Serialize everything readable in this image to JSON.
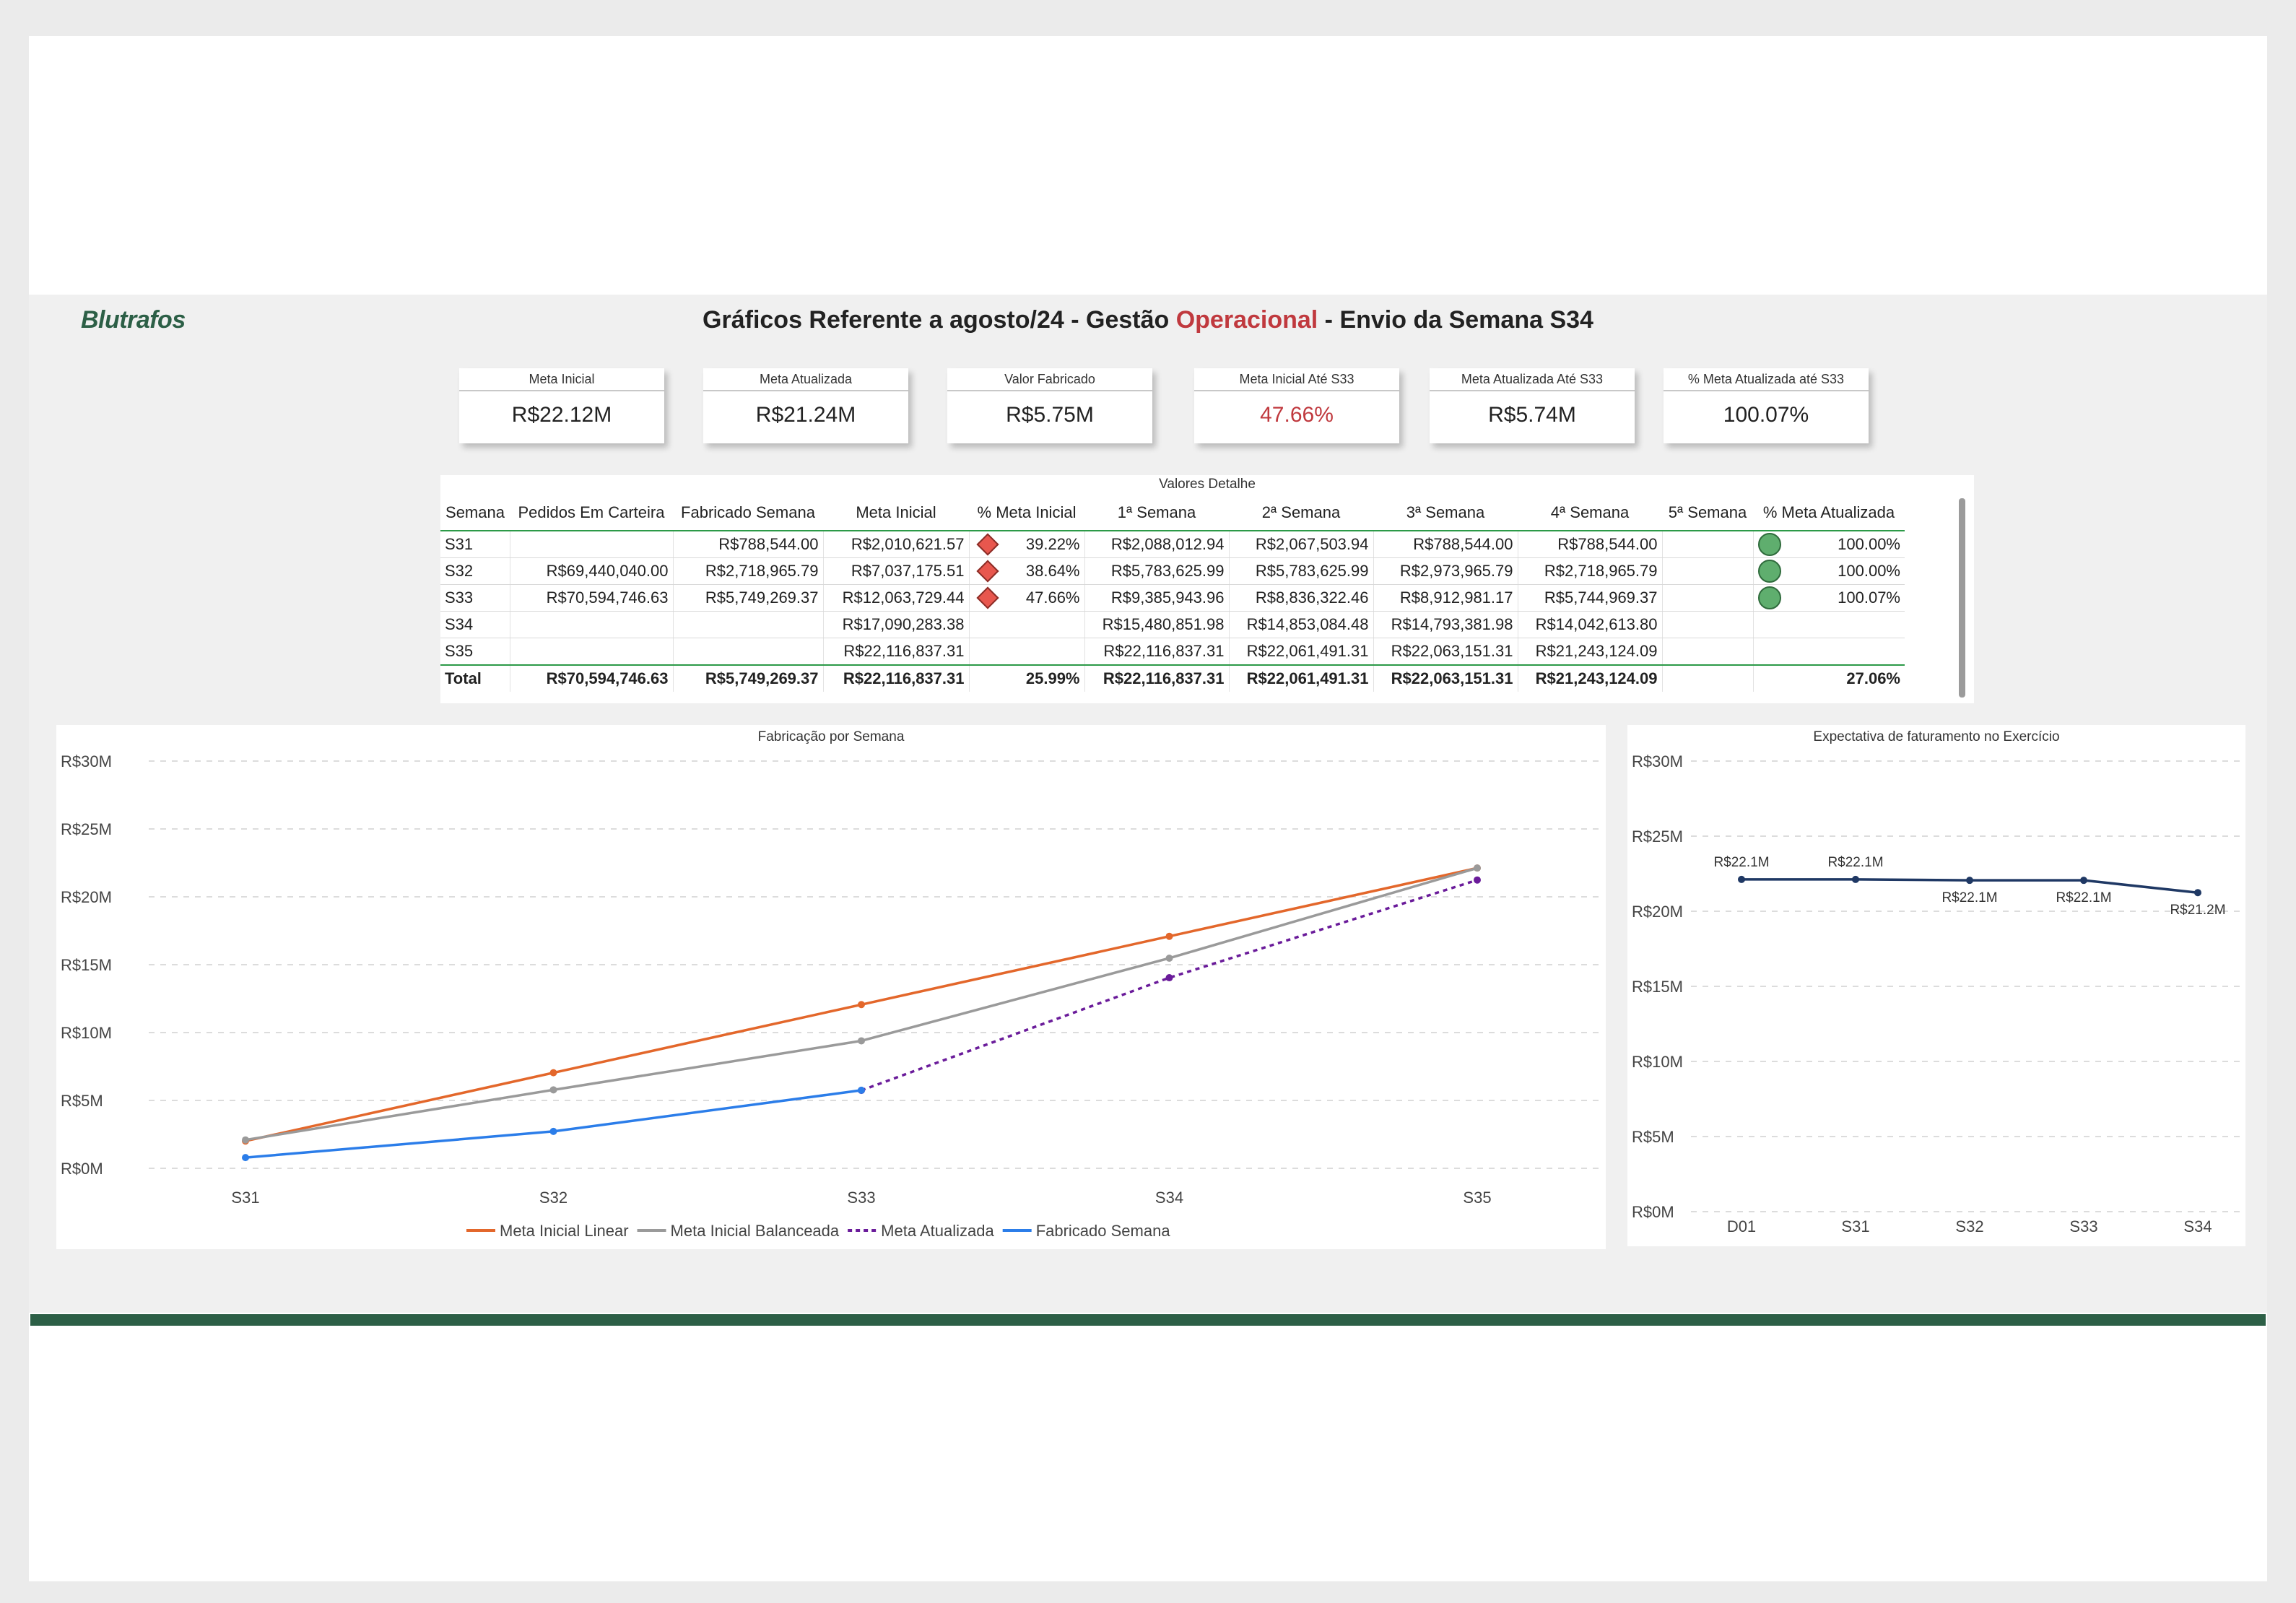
{
  "header": {
    "logo": "Blutrafos",
    "title_part1": "Gráficos Referente a agosto/24 - Gestão ",
    "title_accent": "Operacional",
    "title_part2": " - Envio da Semana S34",
    "accent_color": "#c0393e"
  },
  "cards": [
    {
      "label": "Meta Inicial",
      "value": "R$22.12M"
    },
    {
      "label": "Meta Atualizada",
      "value": "R$21.24M"
    },
    {
      "label": "Valor Fabricado",
      "value": "R$5.75M"
    },
    {
      "label": "Meta Inicial Até S33",
      "value": "47.66%"
    },
    {
      "label": "Meta Atualizada Até S33",
      "value": "R$5.74M"
    },
    {
      "label": "% Meta Atualizada até S33",
      "value": "100.07%"
    }
  ],
  "table": {
    "title": "Valores Detalhe",
    "columns": [
      "Semana",
      "Pedidos Em Carteira",
      "Fabricado Semana",
      "Meta Inicial",
      "% Meta Inicial",
      "1ª Semana",
      "2ª Semana",
      "3ª Semana",
      "4ª Semana",
      "5ª Semana",
      "% Meta Atualizada"
    ],
    "rows": [
      [
        "S31",
        "",
        "R$788,544.00",
        "R$2,010,621.57",
        "39.22%",
        "R$2,088,012.94",
        "R$2,067,503.94",
        "R$788,544.00",
        "R$788,544.00",
        "",
        "100.00%"
      ],
      [
        "S32",
        "R$69,440,040.00",
        "R$2,718,965.79",
        "R$7,037,175.51",
        "38.64%",
        "R$5,783,625.99",
        "R$5,783,625.99",
        "R$2,973,965.79",
        "R$2,718,965.79",
        "",
        "100.00%"
      ],
      [
        "S33",
        "R$70,594,746.63",
        "R$5,749,269.37",
        "R$12,063,729.44",
        "47.66%",
        "R$9,385,943.96",
        "R$8,836,322.46",
        "R$8,912,981.17",
        "R$5,744,969.37",
        "",
        "100.07%"
      ],
      [
        "S34",
        "",
        "",
        "R$17,090,283.38",
        "",
        "R$15,480,851.98",
        "R$14,853,084.48",
        "R$14,793,381.98",
        "R$14,042,613.80",
        "",
        ""
      ],
      [
        "S35",
        "",
        "",
        "R$22,116,837.31",
        "",
        "R$22,116,837.31",
        "R$22,061,491.31",
        "R$22,063,151.31",
        "R$21,243,124.09",
        "",
        ""
      ]
    ],
    "total": [
      "Total",
      "R$70,594,746.63",
      "R$5,749,269.37",
      "R$22,116,837.31",
      "25.99%",
      "R$22,116,837.31",
      "R$22,061,491.31",
      "R$22,063,151.31",
      "R$21,243,124.09",
      "",
      "27.06%"
    ]
  },
  "chart_data": [
    {
      "type": "line",
      "title": "Fabricação por Semana",
      "categories": [
        "S31",
        "S32",
        "S33",
        "S34",
        "S35"
      ],
      "ylim": [
        0,
        30
      ],
      "yticks": [
        0,
        5,
        10,
        15,
        20,
        25,
        30
      ],
      "ytick_labels": [
        "R$0M",
        "R$5M",
        "R$10M",
        "R$15M",
        "R$20M",
        "R$25M",
        "R$30M"
      ],
      "grid": true,
      "legend_position": "bottom-center",
      "series": [
        {
          "name": "Meta Inicial Linear",
          "color": "#e3672b",
          "dashed": false,
          "values": [
            2.01,
            7.04,
            12.06,
            17.09,
            22.12
          ]
        },
        {
          "name": "Meta Inicial Balanceada",
          "color": "#9a9a9a",
          "dashed": false,
          "values": [
            2.09,
            5.78,
            9.39,
            15.48,
            22.12
          ]
        },
        {
          "name": "Meta Atualizada",
          "color": "#6a1b9a",
          "dashed": true,
          "values": [
            null,
            null,
            5.74,
            14.04,
            21.24
          ]
        },
        {
          "name": "Fabricado Semana",
          "color": "#2b7de9",
          "dashed": false,
          "values": [
            0.79,
            2.72,
            5.75,
            null,
            null
          ]
        }
      ]
    },
    {
      "type": "line",
      "title": "Expectativa de faturamento no Exercício",
      "categories": [
        "D01",
        "S31",
        "S32",
        "S33",
        "S34"
      ],
      "ylim": [
        0,
        30
      ],
      "yticks": [
        0,
        5,
        10,
        15,
        20,
        25,
        30
      ],
      "ytick_labels": [
        "R$0M",
        "R$5M",
        "R$10M",
        "R$15M",
        "R$20M",
        "R$25M",
        "R$30M"
      ],
      "grid": true,
      "series": [
        {
          "color": "#1f3864",
          "values": [
            22.12,
            22.12,
            22.06,
            22.06,
            21.24
          ],
          "data_labels": [
            "R$22.1M",
            "R$22.1M",
            "R$22.1M",
            "R$22.1M",
            "R$21.2M"
          ]
        }
      ]
    }
  ]
}
